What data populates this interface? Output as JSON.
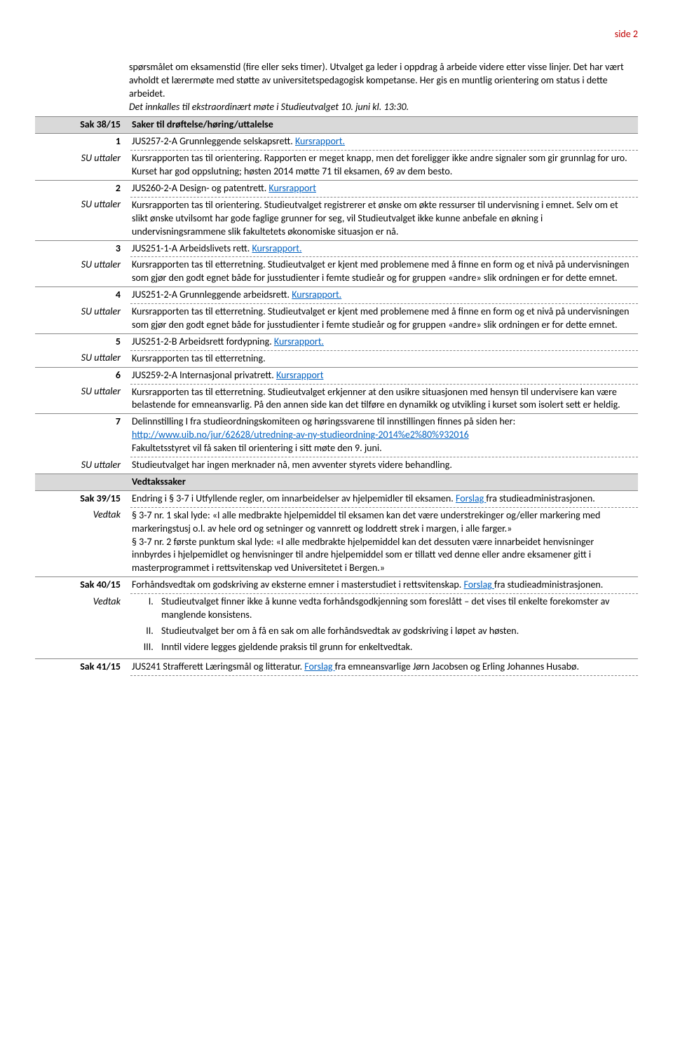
{
  "page_label": "side 2",
  "intro_paragraph": "spørsmålet om eksamenstid (fire eller seks timer). Utvalget ga leder i oppdrag å arbeide videre etter visse linjer. Det har vært avholdt et lærermøte med støtte av universitetspedagogisk kompetanse. Her gis en muntlig orientering om status i dette arbeidet.",
  "intro_italic": "Det innkalles til ekstraordinært møte i Studieutvalget 10. juni kl. 13:30.",
  "labels": {
    "su_uttaler": "SU uttaler",
    "vedtak": "Vedtak"
  },
  "items": {
    "sak38": {
      "num": "Sak 38/15",
      "title": "Saker til drøftelse/høring/uttalelse"
    },
    "i1": {
      "num": "1",
      "title": "JUS257-2-A Grunnleggende selskapsrett. ",
      "link": "Kursrapport.",
      "body": "Kursrapporten tas til orientering. Rapporten er meget knapp, men det foreligger ikke andre signaler som gir grunnlag for uro. Kurset har god oppslutning; høsten 2014 møtte 71 til eksamen, 69 av dem besto."
    },
    "i2": {
      "num": "2",
      "title": "JUS260-2-A Design- og patentrett. ",
      "link": "Kursrapport",
      "body": "Kursrapporten tas til orientering. Studieutvalget registrerer et ønske om økte ressurser til undervisning i emnet. Selv om et slikt ønske utvilsomt har gode faglige grunner for seg, vil Studieutvalget ikke kunne anbefale en økning i undervisningsrammene slik fakultetets økonomiske situasjon er nå."
    },
    "i3": {
      "num": "3",
      "title": "JUS251-1-A Arbeidslivets rett. ",
      "link": "Kursrapport.",
      "body": "Kursrapporten tas til etterretning. Studieutvalget er kjent med problemene med å finne en form og et nivå på undervisningen som gjør den godt egnet både for jusstudienter i femte studieår og for gruppen «andre» slik ordningen er for dette emnet."
    },
    "i4": {
      "num": "4",
      "title": "JUS251-2-A Grunnleggende arbeidsrett. ",
      "link": "Kursrapport.",
      "body": "Kursrapporten tas til etterretning. Studieutvalget er kjent med problemene med å finne en form og et nivå på undervisningen som gjør den godt egnet både for jusstudienter i femte studieår og for gruppen «andre» slik ordningen er for dette emnet."
    },
    "i5": {
      "num": "5",
      "title": "JUS251-2-B Arbeidsrett fordypning. ",
      "link": "Kursrapport.",
      "body": "Kursrapporten tas til etterretning."
    },
    "i6": {
      "num": "6",
      "title": "JUS259-2-A Internasjonal privatrett. ",
      "link": "Kursrapport",
      "body": "Kursrapporten tas til etterretning. Studieutvalget erkjenner at den usikre situasjonen med hensyn til undervisere kan være belastende for emneansvarlig. På den annen side kan det tilføre en dynamikk og utvikling i kurset som isolert sett er heldig."
    },
    "i7": {
      "num": "7",
      "title_pre": "Delinnstilling I fra studieordningskomiteen og høringssvarene ",
      "title_post": "til innstillingen finnes på siden her: ",
      "link": "http://www.uib.no/jur/62628/utredning-av-ny-studieordning-2014%e2%80%932016",
      "line3": "Fakultetsstyret vil få saken til orientering i sitt møte den 9. juni.",
      "body": "Studieutvalget har ingen merknader nå, men avventer styrets videre behandling."
    },
    "vedtakssaker": "Vedtakssaker",
    "sak39": {
      "num": "Sak 39/15",
      "title_pre": "Endring i § 3-7 i Utfyllende regler, om innarbeidelser av hjelpemidler til eksamen. ",
      "link": "Forslag ",
      "title_post": "fra studieadministrasjonen.",
      "body_p1": "§ 3-7 nr. 1 skal lyde: «I alle medbrakte hjelpemiddel til eksamen kan det være understrekinger og/eller markering med markeringstusj o.l. av hele ord og setninger og vannrett og loddrett strek i margen, i alle farger.»",
      "body_p2": "§ 3-7 nr. 2 første punktum skal lyde: «I alle medbrakte hjelpemiddel kan det dessuten være innarbeidet henvisninger innbyrdes i hjelpemidlet og henvisninger til andre hjelpemiddel som er tillatt ved denne eller andre eksamener gitt i masterprogrammet i rettsvitenskap ved Universitetet i Bergen.»"
    },
    "sak40": {
      "num": "Sak 40/15",
      "title_pre": "Forhåndsvedtak om godskriving av eksterne emner i masterstudiet i rettsvitenskap. ",
      "link": "Forslag ",
      "title_post": "fra studieadministrasjonen.",
      "li1": "Studieutvalget finner ikke å kunne vedta forhåndsgodkjenning som foreslått – det vises til enkelte forekomster av manglende konsistens.",
      "li2": "Studieutvalget ber om å få en sak om alle forhåndsvedtak av godskriving i løpet av høsten.",
      "li3": "Inntil videre legges gjeldende praksis til grunn for enkeltvedtak."
    },
    "sak41": {
      "num": "Sak 41/15",
      "title_pre": "JUS241 Strafferett Læringsmål og litteratur. ",
      "link": "Forslag ",
      "title_post": "fra emneansvarlige Jørn Jacobsen og Erling Johannes Husabø."
    }
  }
}
